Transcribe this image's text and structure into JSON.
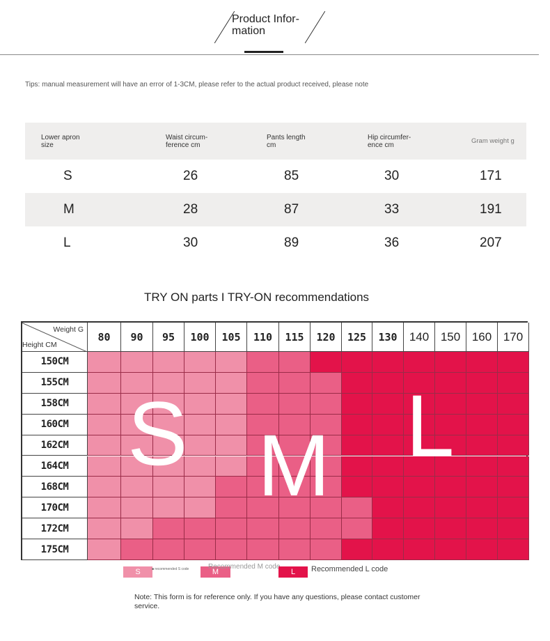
{
  "header": {
    "title": "Product Infor-\nmation"
  },
  "tips": "Tips: manual measurement will have an error of 1-3CM, please refer to the actual product received, please note",
  "size_table": {
    "headers": [
      "Lower apron\nsize",
      "Waist circum-\nference cm",
      "Pants length\ncm",
      "Hip circumfer-\nence cm",
      "Gram weight g"
    ],
    "rows": [
      [
        "S",
        "26",
        "85",
        "30",
        "171"
      ],
      [
        "M",
        "28",
        "87",
        "33",
        "191"
      ],
      [
        "L",
        "30",
        "89",
        "36",
        "207"
      ]
    ]
  },
  "tryon": {
    "title": "TRY ON parts I TRY-ON recommendations",
    "corner_weight": "Weight G",
    "corner_height": "Height CM",
    "weights": [
      "80",
      "90",
      "95",
      "100",
      "105",
      "110",
      "115",
      "120",
      "125",
      "130",
      "140",
      "150",
      "160",
      "170"
    ],
    "heights": [
      "150CM",
      "155CM",
      "158CM",
      "160CM",
      "162CM",
      "164CM",
      "168CM",
      "170CM",
      "172CM",
      "175CM"
    ],
    "big_letters": {
      "s": "S",
      "m": "M",
      "l": "L"
    },
    "colors": {
      "S": "#f090a9",
      "M": "#ea5f86",
      "L": "#e3134a"
    },
    "recommendation_grid": [
      "SSSSSMMLLLLLLL",
      "SSSSSMMMLLLLLL",
      "SSSSSMMMLLLLLL",
      "SSSSSMMMLLLLLL",
      "SSSSSMMMLLLLLL",
      "SSSSSMMMLLLLLL",
      "SSSSMMMMLLLLLL",
      "SSSSMMMMMLLLLL",
      "SSMMMMMMMLLLLL",
      "SMMMMMMMLLLLLL"
    ]
  },
  "legend": {
    "s_box": "S",
    "s_text": "■ recommended S code",
    "m_box": "M",
    "m_text": "Recommended M code",
    "l_box": "L",
    "l_text": "Recommended L code"
  },
  "note": "Note: This form is for reference only. If you have any questions, please contact customer service."
}
